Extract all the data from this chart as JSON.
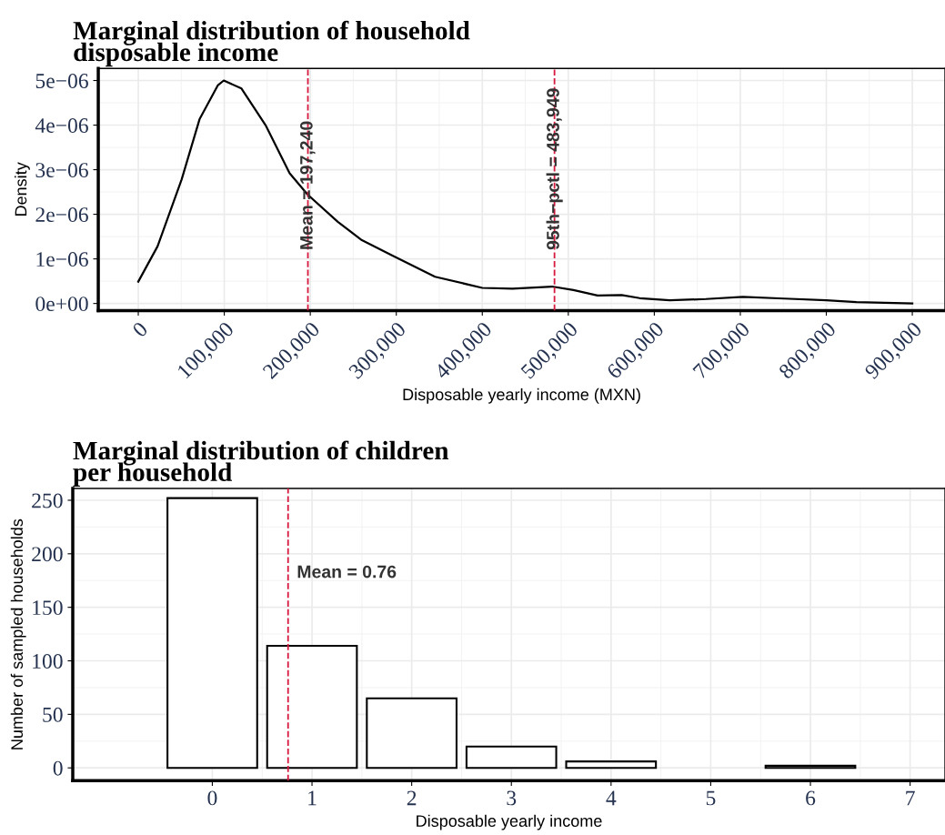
{
  "chart_data": [
    {
      "type": "line",
      "title": "Marginal distribution of household\ndisposable income",
      "xlabel": "Disposable yearly income (MXN)",
      "ylabel": "Density",
      "x": [
        0,
        22400,
        50400,
        71400,
        92400,
        99400,
        120000,
        148000,
        176000,
        197000,
        232000,
        260000,
        295000,
        345000,
        400000,
        435000,
        481000,
        506000,
        534000,
        562000,
        583000,
        618000,
        660000,
        703000,
        751000,
        800000,
        835000,
        900000
      ],
      "series": [
        {
          "color": "#000000",
          "values": [
            4.9e-07,
            1.28e-06,
            2.78e-06,
            4.14e-06,
            4.89e-06,
            5e-06,
            4.82e-06,
            4e-06,
            2.92e-06,
            2.44e-06,
            1.83e-06,
            1.42e-06,
            1.08e-06,
            6e-07,
            3.5e-07,
            3.3e-07,
            3.8e-07,
            3e-07,
            1.8e-07,
            1.9e-07,
            1.2e-07,
            7e-08,
            1e-07,
            1.5e-07,
            1.1e-07,
            7e-08,
            3e-08,
            0
          ]
        }
      ],
      "xlim": [
        -46500,
        938000
      ],
      "ylim": [
        -1.6e-07,
        5.27e-06
      ],
      "xticks": [
        {
          "value": 0,
          "label": "0"
        },
        {
          "value": 100000,
          "label": "100,000"
        },
        {
          "value": 200000,
          "label": "200,000"
        },
        {
          "value": 300000,
          "label": "300,000"
        },
        {
          "value": 400000,
          "label": "400,000"
        },
        {
          "value": 500000,
          "label": "500,000"
        },
        {
          "value": 600000,
          "label": "600,000"
        },
        {
          "value": 700000,
          "label": "700,000"
        },
        {
          "value": 800000,
          "label": "800,000"
        },
        {
          "value": 900000,
          "label": "900,000"
        }
      ],
      "yticks": [
        {
          "value": 0,
          "label": "0e+00"
        },
        {
          "value": 1e-06,
          "label": "1e−06"
        },
        {
          "value": 2e-06,
          "label": "2e−06"
        },
        {
          "value": 3e-06,
          "label": "3e−06"
        },
        {
          "value": 4e-06,
          "label": "4e−06"
        },
        {
          "value": 5e-06,
          "label": "5e−06"
        }
      ],
      "ref_lines": [
        {
          "axis": "x",
          "value": 197240,
          "label": "Mean = 197,240",
          "color": "#d7193f",
          "line_style": "dashed"
        },
        {
          "axis": "x",
          "value": 483949,
          "label": "95th−pctl = 483,949",
          "color": "#d7193f",
          "line_style": "dashed"
        }
      ],
      "grid": true,
      "marker": "none",
      "line_style": "solid",
      "legend": false
    },
    {
      "type": "bar",
      "title": "Marginal distribution of children\nper household",
      "xlabel": "Disposable yearly income",
      "ylabel": "Number of sampled households",
      "x": [
        0,
        1,
        2,
        3,
        4,
        6
      ],
      "series": [
        {
          "color": "#ffffff",
          "values": [
            252,
            114,
            65,
            20,
            6,
            2
          ]
        }
      ],
      "xlim": [
        -1.4,
        7.35
      ],
      "ylim": [
        -12,
        261
      ],
      "xticks": [
        0,
        1,
        2,
        3,
        4,
        5,
        6,
        7
      ],
      "yticks": [
        0,
        50,
        100,
        150,
        200,
        250
      ],
      "ref_lines": [
        {
          "axis": "x",
          "value": 0.76,
          "label": "Mean = 0.76",
          "color": "#d7193f",
          "line_style": "dashed"
        }
      ],
      "grid": true,
      "legend": false
    }
  ]
}
